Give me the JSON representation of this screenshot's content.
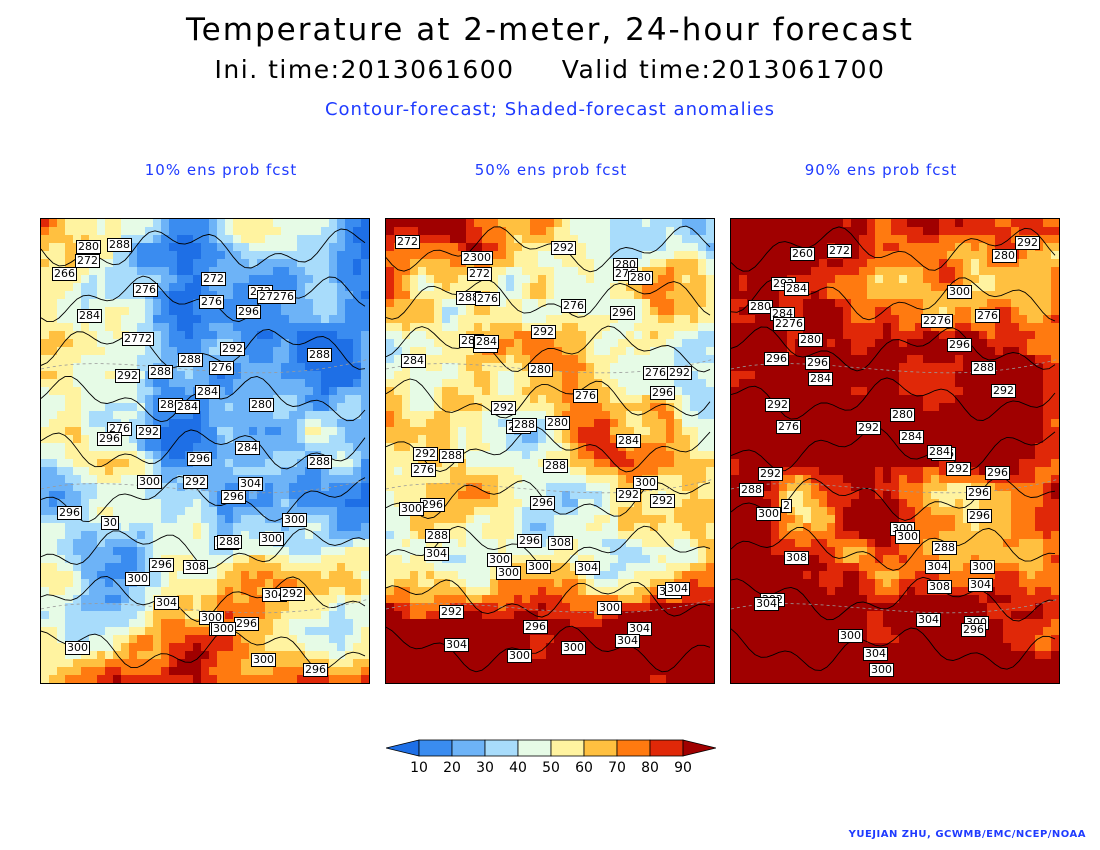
{
  "header": {
    "title": "Temperature at 2-meter, 24-hour forecast",
    "subtitle": "Ini. time:2013061600     Valid time:2013061700",
    "caption": "Contour-forecast; Shaded-forecast anomalies"
  },
  "panels": [
    {
      "title": "10% ens prob fcst",
      "labels": [
        "288",
        "280",
        "272",
        "266",
        "272",
        "276",
        "272",
        "276",
        "27276",
        "296",
        "284",
        "2772",
        "292",
        "288",
        "288",
        "276",
        "288",
        "292",
        "284",
        "280",
        "280",
        "284",
        "276",
        "296",
        "292",
        "284",
        "288",
        "296",
        "292",
        "300",
        "304",
        "296",
        "296",
        "300",
        "30",
        "292",
        "300",
        "288",
        "296",
        "308",
        "300",
        "304",
        "304",
        "292",
        "300",
        "296",
        "296",
        "300",
        "300",
        "300",
        "296"
      ]
    },
    {
      "title": "50% ens prob fcst",
      "labels": [
        "292",
        "272",
        "2300",
        "280",
        "272",
        "276",
        "280",
        "288",
        "276",
        "276",
        "296",
        "292",
        "284",
        "288",
        "284",
        "284",
        "292",
        "280",
        "276",
        "296",
        "276",
        "292",
        "280",
        "284",
        "288",
        "284",
        "292",
        "288",
        "276",
        "288",
        "300",
        "292",
        "296",
        "292",
        "296",
        "300",
        "288",
        "308",
        "296",
        "304",
        "300",
        "304",
        "300",
        "300",
        "308",
        "304",
        "292",
        "300",
        "304",
        "296",
        "304",
        "304",
        "300",
        "300"
      ]
    },
    {
      "title": "90% ens prob fcst",
      "labels": [
        "292",
        "272",
        "260",
        "280",
        "292",
        "300",
        "284",
        "280",
        "276",
        "284",
        "2276",
        "2276",
        "280",
        "296",
        "296",
        "296",
        "288",
        "284",
        "292",
        "292",
        "280",
        "276",
        "292",
        "284",
        "276",
        "284",
        "292",
        "292",
        "296",
        "296",
        "288",
        "300",
        "2",
        "296",
        "300",
        "300",
        "288",
        "308",
        "300",
        "304",
        "304",
        "308",
        "292",
        "304",
        "300",
        "304",
        "296",
        "300",
        "304",
        "300"
      ]
    }
  ],
  "legend": {
    "ticks": [
      "10",
      "20",
      "30",
      "40",
      "50",
      "60",
      "70",
      "80",
      "90"
    ],
    "colors": [
      "#1e6fe6",
      "#3a8cf0",
      "#6db3f7",
      "#a8dcfb",
      "#e6fbe6",
      "#fff3a0",
      "#ffc040",
      "#ff7a10",
      "#e02808",
      "#a00000"
    ]
  },
  "credit": "YUEJIAN ZHU, GCWMB/EMC/NCEP/NOAA"
}
